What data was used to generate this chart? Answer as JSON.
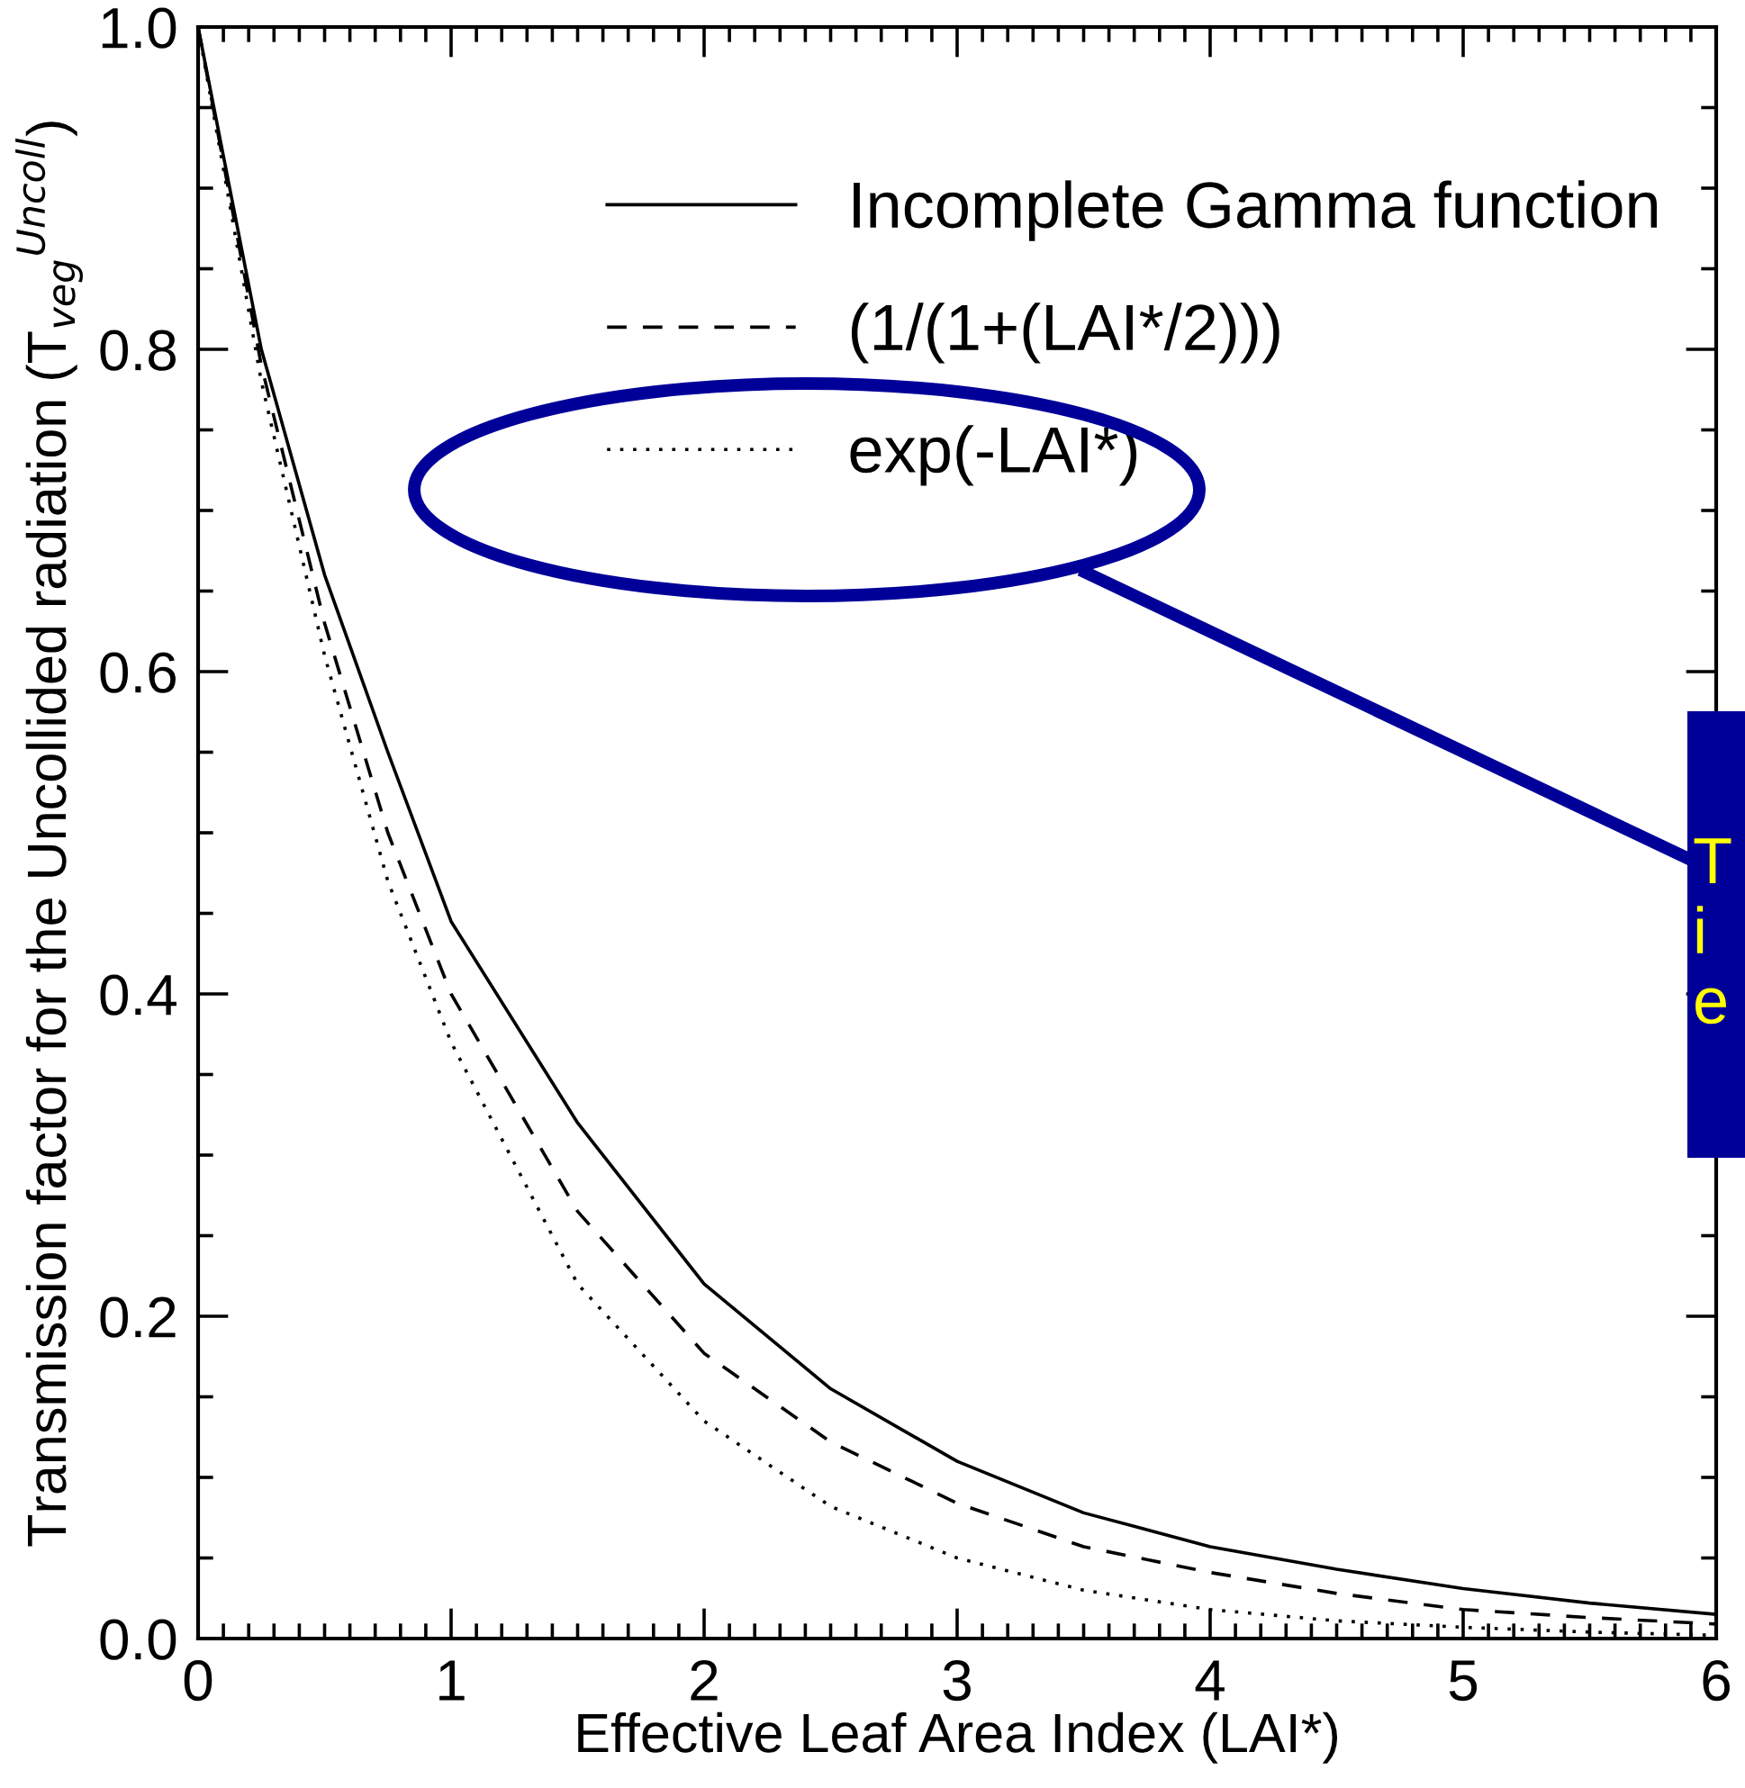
{
  "chart_data": {
    "type": "line",
    "xlabel": "Effective Leaf Area Index (LAI*)",
    "ylabel": "Transmission factor for the Uncollided radiation (T$_{veg}$$^{Uncoll}$)",
    "x": [
      0,
      0.25,
      0.5,
      0.75,
      1,
      1.5,
      2,
      2.5,
      3,
      3.5,
      4,
      4.5,
      5,
      5.5,
      6
    ],
    "series": [
      {
        "name": "Incomplete Gamma function",
        "color": "#000000",
        "line_style": "solid",
        "values": [
          1.0,
          0.8,
          0.66,
          0.55,
          0.445,
          0.32,
          0.22,
          0.155,
          0.11,
          0.078,
          0.057,
          0.043,
          0.031,
          0.022,
          0.015
        ]
      },
      {
        "name": "(1/(1+(LAI*/2)))",
        "color": "#000000",
        "line_style": "dashed",
        "values": [
          1.0,
          0.79,
          0.63,
          0.5,
          0.4,
          0.265,
          0.177,
          0.122,
          0.084,
          0.057,
          0.041,
          0.028,
          0.018,
          0.013,
          0.009
        ]
      },
      {
        "name": "exp(-LAI*)",
        "color": "#000000",
        "line_style": "dotted",
        "values": [
          1.0,
          0.78,
          0.61,
          0.47,
          0.37,
          0.22,
          0.135,
          0.082,
          0.05,
          0.03,
          0.018,
          0.011,
          0.007,
          0.004,
          0.002
        ]
      }
    ],
    "xlim": [
      0,
      6
    ],
    "xticks": [
      0,
      1,
      2,
      3,
      4,
      5,
      6
    ],
    "ylim": [
      0,
      1
    ],
    "yticks": [
      {
        "value": 0,
        "label": "0.0"
      },
      {
        "value": 0.2,
        "label": "0.2"
      },
      {
        "value": 0.4,
        "label": "0.4"
      },
      {
        "value": 0.6,
        "label": "0.6"
      },
      {
        "value": 0.8,
        "label": "0.8"
      },
      {
        "value": 1,
        "label": "1.0"
      }
    ],
    "grid": false,
    "legend": "top right",
    "annotations": [
      "T\ni\ne"
    ]
  }
}
